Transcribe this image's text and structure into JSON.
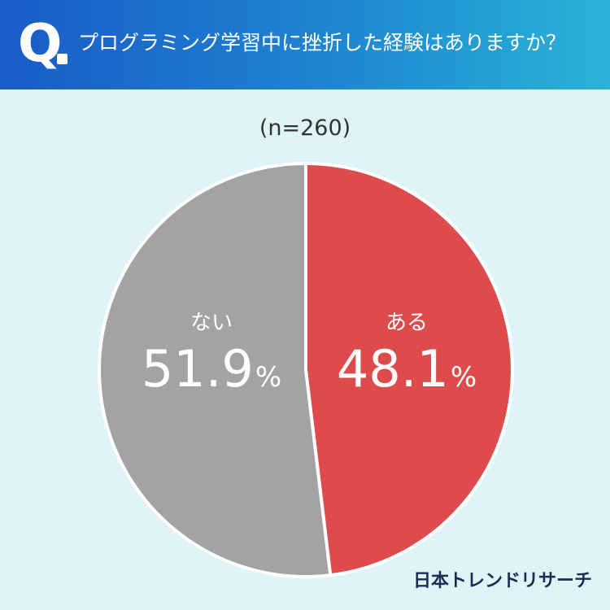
{
  "header": {
    "q_mark": "Q",
    "question": "プログラミング学習中に挫折した経験はありますか？"
  },
  "sample_size": "(n=260)",
  "brand": "日本トレンドリサーチ",
  "chart_data": {
    "type": "pie",
    "title": "プログラミング学習中に挫折した経験はありますか？",
    "subtitle": "(n=260)",
    "categories": [
      "ある",
      "ない"
    ],
    "values": [
      48.1,
      51.9
    ],
    "unit": "%",
    "colors": [
      "#de4b4c",
      "#a3a3a3"
    ],
    "labels": [
      {
        "category": "ある",
        "value": "48.1",
        "unit": "%"
      },
      {
        "category": "ない",
        "value": "51.9",
        "unit": "%"
      }
    ]
  }
}
